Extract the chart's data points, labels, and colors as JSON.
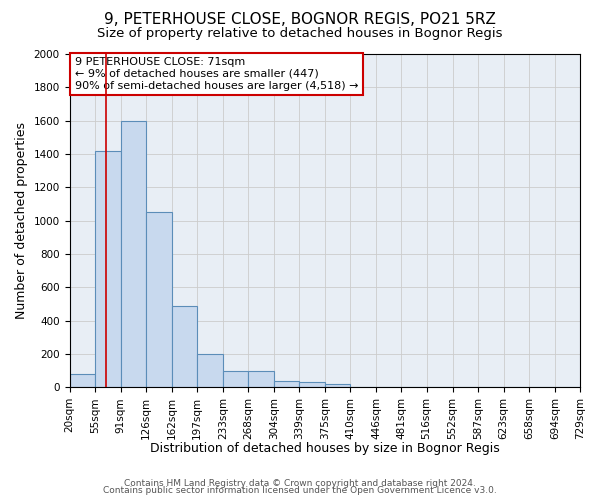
{
  "title": "9, PETERHOUSE CLOSE, BOGNOR REGIS, PO21 5RZ",
  "subtitle": "Size of property relative to detached houses in Bognor Regis",
  "xlabel": "Distribution of detached houses by size in Bognor Regis",
  "ylabel": "Number of detached properties",
  "footnote1": "Contains HM Land Registry data © Crown copyright and database right 2024.",
  "footnote2": "Contains public sector information licensed under the Open Government Licence v3.0.",
  "bin_labels": [
    "20sqm",
    "55sqm",
    "91sqm",
    "126sqm",
    "162sqm",
    "197sqm",
    "233sqm",
    "268sqm",
    "304sqm",
    "339sqm",
    "375sqm",
    "410sqm",
    "446sqm",
    "481sqm",
    "516sqm",
    "552sqm",
    "587sqm",
    "623sqm",
    "658sqm",
    "694sqm",
    "729sqm"
  ],
  "bin_edges": [
    20,
    55,
    91,
    126,
    162,
    197,
    233,
    268,
    304,
    339,
    375,
    410,
    446,
    481,
    516,
    552,
    587,
    623,
    658,
    694,
    729
  ],
  "bar_heights": [
    80,
    1420,
    1600,
    1050,
    490,
    200,
    100,
    100,
    40,
    30,
    20,
    0,
    0,
    0,
    0,
    0,
    0,
    0,
    0,
    0
  ],
  "bar_color": "#c8d9ee",
  "bar_edge_color": "#5b8db8",
  "bar_edge_width": 0.8,
  "grid_color": "#cccccc",
  "background_color": "#e8eef5",
  "red_line_x": 71,
  "red_line_color": "#cc0000",
  "ylim": [
    0,
    2000
  ],
  "yticks": [
    0,
    200,
    400,
    600,
    800,
    1000,
    1200,
    1400,
    1600,
    1800,
    2000
  ],
  "annotation_text": "9 PETERHOUSE CLOSE: 71sqm\n← 9% of detached houses are smaller (447)\n90% of semi-detached houses are larger (4,518) →",
  "title_fontsize": 11,
  "subtitle_fontsize": 9.5,
  "label_fontsize": 9,
  "tick_fontsize": 7.5,
  "footnote_fontsize": 6.5
}
